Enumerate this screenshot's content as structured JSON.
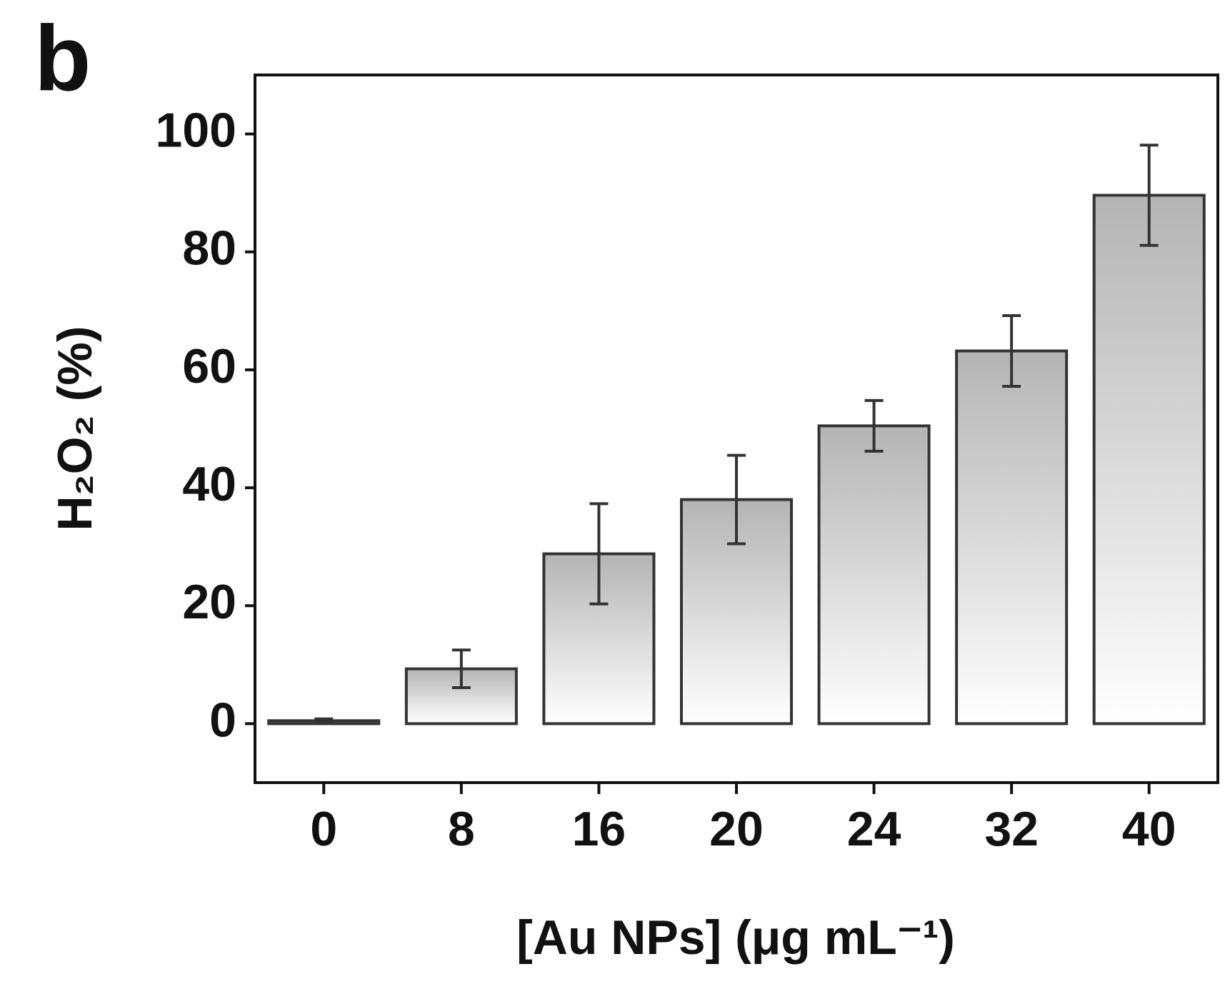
{
  "chart_data": {
    "type": "bar",
    "panel_label": "b",
    "x_label": "[Au NPs] (μg mL⁻¹)",
    "y_label": "H₂O₂ (%)",
    "categories": [
      "0",
      "8",
      "16",
      "20",
      "24",
      "32",
      "40"
    ],
    "values": [
      0.5,
      9.3,
      28.8,
      38,
      50.5,
      63.2,
      89.6
    ],
    "errors": [
      0.3,
      3.2,
      8.5,
      7.5,
      4.3,
      6,
      8.5
    ],
    "color": "#b4b4b4",
    "ylim": [
      -10,
      110
    ],
    "yticks": [
      0,
      20,
      40,
      60,
      80,
      100
    ],
    "grid": false
  }
}
